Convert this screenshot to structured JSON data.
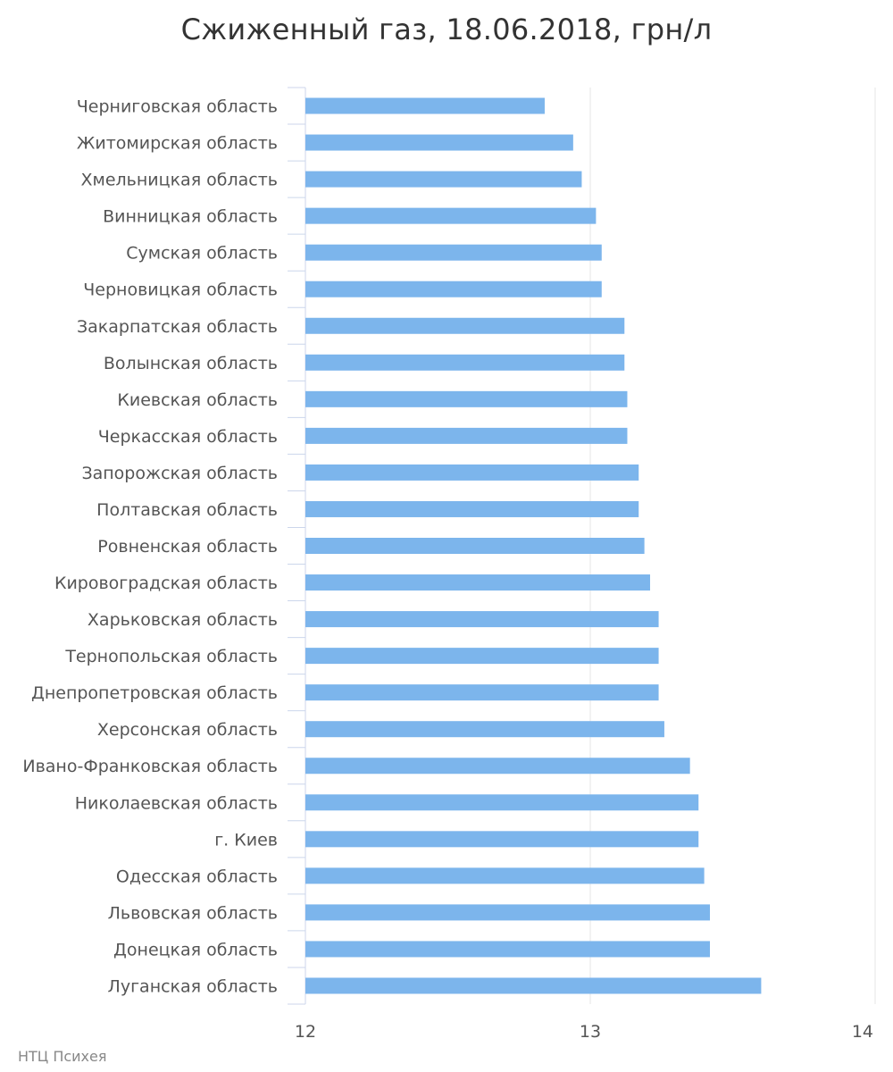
{
  "chart_data": {
    "type": "bar",
    "orientation": "horizontal",
    "title": "Сжиженный газ, 18.06.2018, грн/л",
    "credit": "НТЦ Психея",
    "categories": [
      "Черниговская область",
      "Житомирская область",
      "Хмельницкая область",
      "Винницкая область",
      "Сумская область",
      "Черновицкая область",
      "Закарпатская область",
      "Волынская область",
      "Киевская область",
      "Черкасская область",
      "Запорожская область",
      "Полтавская область",
      "Ровненская область",
      "Кировоградская область",
      "Харьковская область",
      "Тернопольская область",
      "Днепропетровская область",
      "Херсонская область",
      "Ивано-Франковская область",
      "Николаевская область",
      "г. Киев",
      "Одесская область",
      "Львовская область",
      "Донецкая область",
      "Луганская область"
    ],
    "values": [
      12.84,
      12.94,
      12.97,
      13.02,
      13.04,
      13.04,
      13.12,
      13.12,
      13.13,
      13.13,
      13.17,
      13.17,
      13.19,
      13.21,
      13.24,
      13.24,
      13.24,
      13.26,
      13.35,
      13.38,
      13.38,
      13.4,
      13.42,
      13.42,
      13.6
    ],
    "xlim": [
      12,
      14
    ],
    "xticks": [
      "12",
      "13",
      "14"
    ],
    "grid": true,
    "bar_color": "#7cb5ec"
  }
}
